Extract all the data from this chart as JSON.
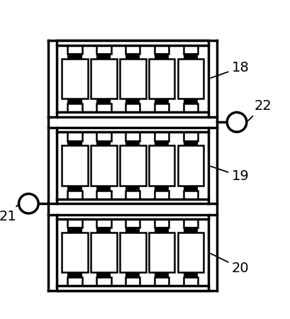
{
  "bg_color": "#ffffff",
  "line_color": "#000000",
  "lw_main": 2.5,
  "lw_thin": 1.8,
  "label_fontsize": 14,
  "n_batteries": 5,
  "figsize": [
    4.09,
    4.5
  ],
  "group_labels": [
    "18",
    "19",
    "20"
  ],
  "plus_label": "22",
  "minus_label": "21"
}
